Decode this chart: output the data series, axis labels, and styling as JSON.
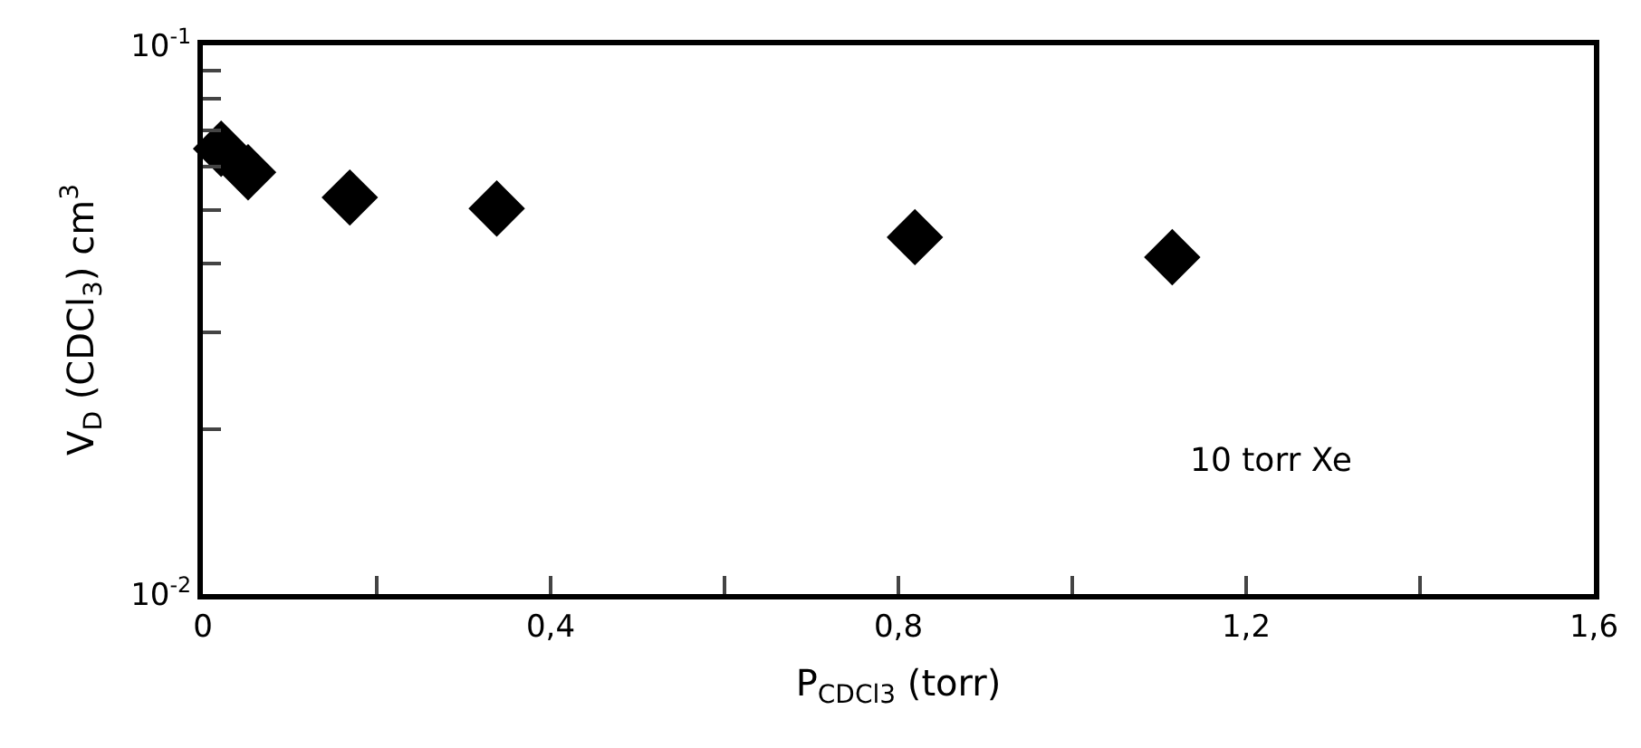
{
  "chart_data": {
    "type": "scatter",
    "xlabel": "P$_{CDCl3}$ (torr)",
    "ylabel": "V$_{D}$ (CDCl$_{3}$) cm$^{3}$",
    "x": [
      0.021,
      0.052,
      0.169,
      0.338,
      0.819,
      1.115
    ],
    "series": [
      {
        "color": "#000000",
        "values": [
          0.0648,
          0.0587,
          0.0528,
          0.0504,
          0.0447,
          0.0411
        ]
      }
    ],
    "marker": "diamond",
    "log": "y",
    "xlim": [
      0,
      1.6
    ],
    "ylim": [
      0.01,
      0.1
    ],
    "xticks": [
      0,
      {
        "value": 0.2,
        "label": null
      },
      {
        "value": 0.4,
        "label": "0,4"
      },
      {
        "value": 0.6,
        "label": null
      },
      {
        "value": 0.8,
        "label": "0,8"
      },
      {
        "value": 1.0,
        "label": null
      },
      {
        "value": 1.2,
        "label": "1,2"
      },
      {
        "value": 1.4,
        "label": null
      },
      {
        "value": 1.6,
        "label": "1,6"
      }
    ],
    "yticks": [
      {
        "value": 0.01,
        "label": "10$^{-2}$"
      },
      {
        "value": 0.02,
        "label": null
      },
      {
        "value": 0.03,
        "label": null
      },
      {
        "value": 0.04,
        "label": null
      },
      {
        "value": 0.05,
        "label": null
      },
      {
        "value": 0.06,
        "label": null
      },
      {
        "value": 0.07,
        "label": null
      },
      {
        "value": 0.08,
        "label": null
      },
      {
        "value": 0.09,
        "label": null
      },
      {
        "value": 0.1,
        "label": "10$^{-1}$"
      }
    ],
    "annotations": [
      "10 torr Xe"
    ]
  }
}
